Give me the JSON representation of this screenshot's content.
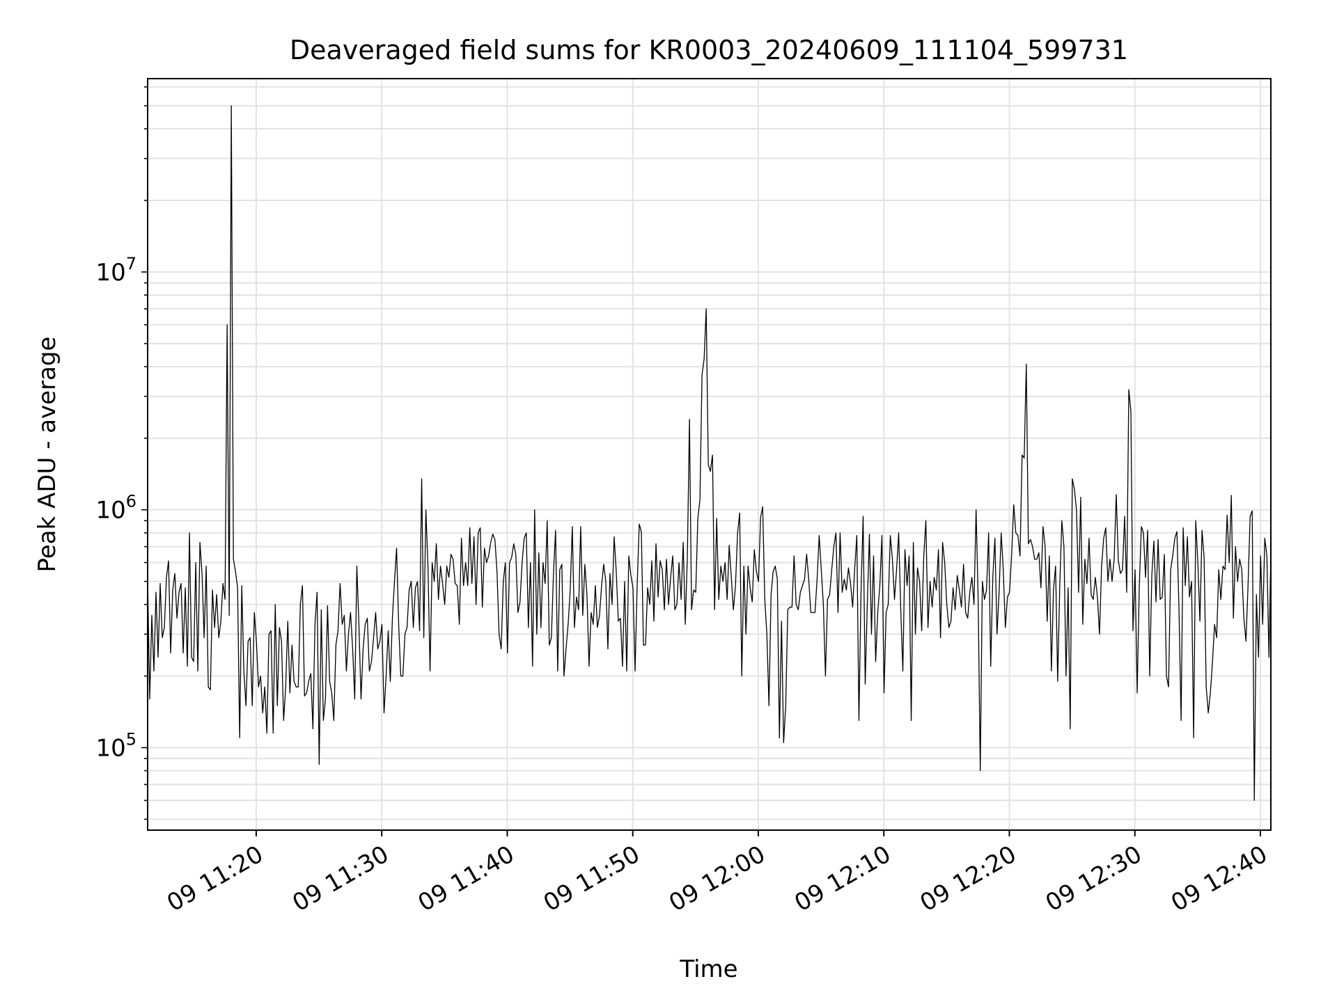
{
  "chart_data": {
    "type": "line",
    "title": "Deaveraged field sums for KR0003_20240609_111104_599731",
    "xlabel": "Time",
    "ylabel": "Peak ADU - average",
    "yscale": "log",
    "ylim": [
      45000,
      65000000
    ],
    "xlim": [
      "2024-06-09 11:11:21",
      "2024-06-09 12:40:50"
    ],
    "grid": true,
    "line_color": "#000000",
    "x_ticks": [
      {
        "time": "2024-06-09 11:20",
        "label": "09 11:20"
      },
      {
        "time": "2024-06-09 11:30",
        "label": "09 11:30"
      },
      {
        "time": "2024-06-09 11:40",
        "label": "09 11:40"
      },
      {
        "time": "2024-06-09 11:50",
        "label": "09 11:50"
      },
      {
        "time": "2024-06-09 12:00",
        "label": "09 12:00"
      },
      {
        "time": "2024-06-09 12:10",
        "label": "09 12:10"
      },
      {
        "time": "2024-06-09 12:20",
        "label": "09 12:20"
      },
      {
        "time": "2024-06-09 12:30",
        "label": "09 12:30"
      },
      {
        "time": "2024-06-09 12:40",
        "label": "09 12:40"
      }
    ],
    "y_ticks": [
      {
        "value": 100000,
        "base": "10",
        "exp": "5"
      },
      {
        "value": 1000000,
        "base": "10",
        "exp": "6"
      },
      {
        "value": 10000000,
        "base": "10",
        "exp": "7"
      }
    ],
    "series": [
      {
        "x_start": "2024-06-09 11:11:21",
        "x_step_seconds": 10,
        "values": [
          510000,
          160000,
          360000,
          210000,
          450000,
          240000,
          490000,
          290000,
          320000,
          520000,
          610000,
          250000,
          460000,
          540000,
          350000,
          450000,
          490000,
          250000,
          470000,
          220000,
          800000,
          240000,
          230000,
          600000,
          210000,
          730000,
          540000,
          290000,
          580000,
          180000,
          175000,
          460000,
          320000,
          440000,
          290000,
          340000,
          490000,
          420000,
          6000000,
          360000,
          50000000,
          620000,
          550000,
          470000,
          110000,
          480000,
          210000,
          150000,
          280000,
          290000,
          150000,
          370000,
          280000,
          180000,
          200000,
          140000,
          180000,
          115000,
          300000,
          310000,
          115000,
          400000,
          150000,
          320000,
          280000,
          130000,
          180000,
          340000,
          170000,
          270000,
          190000,
          180000,
          180000,
          400000,
          480000,
          165000,
          170000,
          190000,
          205000,
          120000,
          330000,
          450000,
          85000,
          380000,
          130000,
          160000,
          395000,
          190000,
          170000,
          130000,
          270000,
          310000,
          490000,
          330000,
          360000,
          210000,
          300000,
          370000,
          260000,
          160000,
          580000,
          330000,
          160000,
          260000,
          330000,
          350000,
          210000,
          230000,
          290000,
          370000,
          260000,
          280000,
          330000,
          140000,
          200000,
          310000,
          190000,
          350000,
          500000,
          690000,
          330000,
          200000,
          200000,
          300000,
          320000,
          460000,
          500000,
          320000,
          470000,
          500000,
          310000,
          1350000,
          290000,
          1000000,
          580000,
          210000,
          600000,
          500000,
          720000,
          420000,
          580000,
          490000,
          400000,
          580000,
          520000,
          650000,
          620000,
          490000,
          480000,
          330000,
          760000,
          480000,
          600000,
          480000,
          840000,
          490000,
          770000,
          400000,
          800000,
          840000,
          390000,
          690000,
          600000,
          640000,
          730000,
          790000,
          750000,
          550000,
          300000,
          260000,
          500000,
          600000,
          250000,
          600000,
          630000,
          720000,
          650000,
          370000,
          410000,
          600000,
          760000,
          800000,
          320000,
          600000,
          220000,
          1000000,
          300000,
          660000,
          320000,
          600000,
          490000,
          900000,
          270000,
          290000,
          540000,
          820000,
          210000,
          560000,
          590000,
          200000,
          260000,
          330000,
          460000,
          850000,
          320000,
          430000,
          380000,
          850000,
          360000,
          590000,
          440000,
          220000,
          370000,
          330000,
          480000,
          320000,
          360000,
          480000,
          590000,
          500000,
          260000,
          540000,
          400000,
          770000,
          550000,
          340000,
          350000,
          220000,
          500000,
          210000,
          640000,
          530000,
          470000,
          210000,
          480000,
          870000,
          810000,
          270000,
          270000,
          470000,
          400000,
          610000,
          340000,
          720000,
          430000,
          610000,
          560000,
          380000,
          620000,
          400000,
          520000,
          640000,
          380000,
          400000,
          600000,
          420000,
          730000,
          330000,
          640000,
          2400000,
          380000,
          460000,
          450000,
          920000,
          1100000,
          3700000,
          4300000,
          7000000,
          1550000,
          1450000,
          1700000,
          380000,
          920000,
          420000,
          580000,
          500000,
          600000,
          420000,
          710000,
          520000,
          380000,
          480000,
          800000,
          970000,
          200000,
          580000,
          300000,
          580000,
          470000,
          410000,
          680000,
          550000,
          500000,
          930000,
          1030000,
          420000,
          300000,
          150000,
          440000,
          550000,
          580000,
          510000,
          110000,
          340000,
          105000,
          150000,
          380000,
          390000,
          390000,
          640000,
          400000,
          380000,
          450000,
          480000,
          510000,
          650000,
          510000,
          370000,
          370000,
          370000,
          510000,
          780000,
          560000,
          400000,
          200000,
          420000,
          440000,
          560000,
          700000,
          800000,
          370000,
          800000,
          450000,
          510000,
          460000,
          570000,
          490000,
          390000,
          570000,
          780000,
          130000,
          450000,
          940000,
          185000,
          400000,
          790000,
          300000,
          640000,
          230000,
          370000,
          480000,
          780000,
          170000,
          370000,
          400000,
          780000,
          620000,
          420000,
          560000,
          800000,
          380000,
          210000,
          680000,
          480000,
          640000,
          130000,
          730000,
          300000,
          570000,
          500000,
          310000,
          640000,
          900000,
          320000,
          500000,
          390000,
          520000,
          460000,
          680000,
          290000,
          730000,
          600000,
          400000,
          320000,
          340000,
          470000,
          380000,
          530000,
          460000,
          390000,
          590000,
          370000,
          350000,
          450000,
          520000,
          400000,
          1000000,
          420000,
          80000,
          500000,
          420000,
          460000,
          800000,
          220000,
          520000,
          760000,
          300000,
          450000,
          800000,
          560000,
          320000,
          430000,
          450000,
          650000,
          1050000,
          800000,
          780000,
          640000,
          1700000,
          1650000,
          4100000,
          720000,
          750000,
          700000,
          620000,
          620000,
          660000,
          470000,
          850000,
          700000,
          340000,
          640000,
          210000,
          460000,
          580000,
          190000,
          480000,
          900000,
          700000,
          200000,
          470000,
          120000,
          1350000,
          1220000,
          1000000,
          450000,
          1130000,
          330000,
          620000,
          490000,
          760000,
          440000,
          420000,
          520000,
          430000,
          300000,
          580000,
          760000,
          840000,
          500000,
          620000,
          500000,
          620000,
          1160000,
          610000,
          540000,
          560000,
          940000,
          450000,
          3200000,
          2600000,
          310000,
          560000,
          170000,
          470000,
          850000,
          800000,
          520000,
          820000,
          200000,
          530000,
          740000,
          410000,
          750000,
          420000,
          430000,
          650000,
          200000,
          180000,
          560000,
          640000,
          760000,
          810000,
          380000,
          130000,
          840000,
          480000,
          770000,
          430000,
          500000,
          110000,
          900000,
          600000,
          340000,
          820000,
          630000,
          180000,
          140000,
          170000,
          230000,
          330000,
          290000,
          560000,
          420000,
          580000,
          560000,
          950000,
          600000,
          1150000,
          350000,
          700000,
          500000,
          620000,
          560000,
          350000,
          280000,
          480000,
          940000,
          990000,
          60000,
          440000,
          240000,
          640000,
          330000,
          760000,
          640000,
          240000,
          740000
        ]
      }
    ]
  }
}
